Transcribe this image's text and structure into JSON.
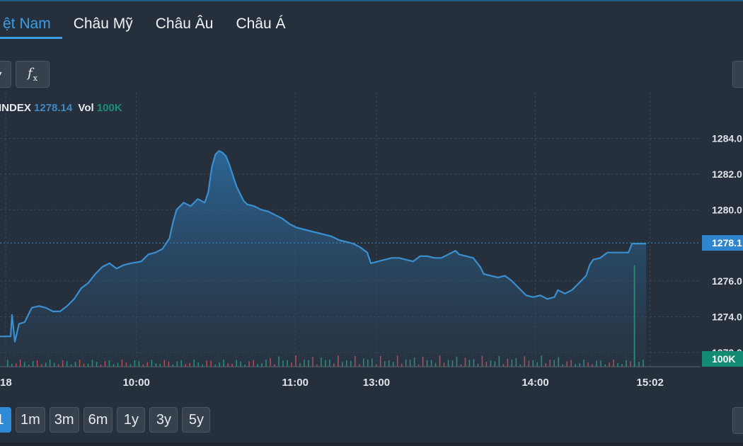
{
  "tabs": [
    {
      "label": "ệt Nam",
      "active": true
    },
    {
      "label": "Châu Mỹ",
      "active": false
    },
    {
      "label": "Châu Âu",
      "active": false
    },
    {
      "label": "Châu Á",
      "active": false
    }
  ],
  "toolbar": {
    "fx_label": "f",
    "fx_sub": "x",
    "caret_icon": "caret-down-icon",
    "right_icon": "plus-icon"
  },
  "legend": {
    "name": "INDEX",
    "value": "1278.14",
    "vol_label": "Vol",
    "vol_value": "100K"
  },
  "periods": [
    {
      "label": "1",
      "active": true
    },
    {
      "label": "1m"
    },
    {
      "label": "3m"
    },
    {
      "label": "6m"
    },
    {
      "label": "1y"
    },
    {
      "label": "3y"
    },
    {
      "label": "5y"
    }
  ],
  "chart_data": {
    "type": "area",
    "y_ticks": [
      "1284.0",
      "1282.0",
      "1280.0",
      "1276.0",
      "1274.0",
      "1272.0"
    ],
    "y_tick_values": [
      1284,
      1282,
      1280,
      1276,
      1274,
      1272
    ],
    "ylim": [
      1271.2,
      1286.4
    ],
    "last_price_label": "1278.1",
    "last_price_value": 1278.14,
    "volume_label": "100K",
    "x_ticks": [
      {
        "label": "18",
        "x": 0
      },
      {
        "label": "10:00",
        "x": 37
      },
      {
        "label": "11:00",
        "x": 82
      },
      {
        "label": "13:00",
        "x": 105
      },
      {
        "label": "14:00",
        "x": 150
      },
      {
        "label": "15:02",
        "x": 182.5
      }
    ],
    "xlim": [
      0,
      210
    ],
    "plot_end_x": 183,
    "price": [
      [
        0,
        1272.9
      ],
      [
        3,
        1272.9
      ],
      [
        3.4,
        1274.1
      ],
      [
        4.2,
        1272.6
      ],
      [
        5.4,
        1273.6
      ],
      [
        7,
        1273.7
      ],
      [
        9,
        1274.5
      ],
      [
        11,
        1274.6
      ],
      [
        13,
        1274.5
      ],
      [
        15,
        1274.3
      ],
      [
        17,
        1274.3
      ],
      [
        19,
        1274.6
      ],
      [
        21,
        1275.0
      ],
      [
        23,
        1275.6
      ],
      [
        25,
        1275.9
      ],
      [
        27,
        1276.4
      ],
      [
        29,
        1276.8
      ],
      [
        31,
        1277.0
      ],
      [
        33,
        1276.7
      ],
      [
        35,
        1276.9
      ],
      [
        37,
        1277.0
      ],
      [
        40,
        1277.1
      ],
      [
        42,
        1277.5
      ],
      [
        44,
        1277.6
      ],
      [
        46,
        1277.8
      ],
      [
        48,
        1278.4
      ],
      [
        49,
        1279.3
      ],
      [
        50,
        1280.0
      ],
      [
        52,
        1280.4
      ],
      [
        54,
        1280.2
      ],
      [
        56,
        1280.6
      ],
      [
        58,
        1280.4
      ],
      [
        59,
        1281.0
      ],
      [
        60,
        1282.4
      ],
      [
        61,
        1283.1
      ],
      [
        62,
        1283.3
      ],
      [
        63,
        1283.2
      ],
      [
        64,
        1283.0
      ],
      [
        65,
        1282.5
      ],
      [
        66,
        1281.9
      ],
      [
        67,
        1281.3
      ],
      [
        68,
        1280.9
      ],
      [
        69,
        1280.5
      ],
      [
        70,
        1280.3
      ],
      [
        72,
        1280.2
      ],
      [
        74,
        1280.0
      ],
      [
        76,
        1279.9
      ],
      [
        78,
        1279.7
      ],
      [
        80,
        1279.5
      ],
      [
        82,
        1279.2
      ],
      [
        84,
        1279.0
      ],
      [
        86,
        1278.9
      ],
      [
        88,
        1278.8
      ],
      [
        90,
        1278.7
      ],
      [
        92,
        1278.6
      ],
      [
        94,
        1278.5
      ],
      [
        96,
        1278.3
      ],
      [
        98,
        1278.2
      ],
      [
        100,
        1278.1
      ],
      [
        102,
        1277.9
      ],
      [
        104,
        1277.6
      ],
      [
        105,
        1277.0
      ],
      [
        107,
        1277.1
      ],
      [
        109,
        1277.2
      ],
      [
        111,
        1277.3
      ],
      [
        113,
        1277.3
      ],
      [
        115,
        1277.2
      ],
      [
        117,
        1277.1
      ],
      [
        119,
        1277.4
      ],
      [
        121,
        1277.4
      ],
      [
        123,
        1277.3
      ],
      [
        125,
        1277.3
      ],
      [
        127,
        1277.5
      ],
      [
        129,
        1277.7
      ],
      [
        130,
        1277.5
      ],
      [
        132,
        1277.4
      ],
      [
        134,
        1277.3
      ],
      [
        136,
        1276.8
      ],
      [
        137,
        1276.4
      ],
      [
        139,
        1276.3
      ],
      [
        141,
        1276.2
      ],
      [
        143,
        1276.3
      ],
      [
        145,
        1276.0
      ],
      [
        147,
        1275.6
      ],
      [
        149,
        1275.2
      ],
      [
        151,
        1275.1
      ],
      [
        153,
        1275.2
      ],
      [
        155,
        1275.0
      ],
      [
        157,
        1275.1
      ],
      [
        158,
        1275.5
      ],
      [
        160,
        1275.3
      ],
      [
        162,
        1275.5
      ],
      [
        164,
        1275.9
      ],
      [
        166,
        1276.3
      ],
      [
        167,
        1276.9
      ],
      [
        168,
        1277.2
      ],
      [
        170,
        1277.3
      ],
      [
        172,
        1277.6
      ],
      [
        174,
        1277.6
      ],
      [
        176,
        1277.6
      ],
      [
        178,
        1277.6
      ],
      [
        179,
        1278.1
      ],
      [
        183,
        1278.1
      ]
    ],
    "volume_spike_x": 179.5,
    "volume_spike_fraction": 0.82
  }
}
